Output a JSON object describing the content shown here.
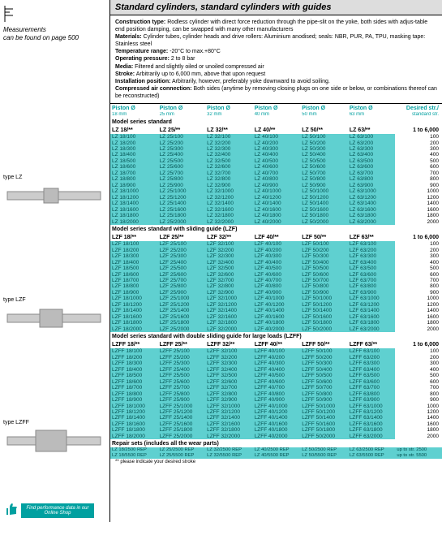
{
  "left": {
    "measurements": "Measurements",
    "measurements2": "can be found on page 500",
    "type_lz": "type LZ",
    "type_lzf": "type LZF",
    "type_lzff": "type LZFF",
    "shop": "Find performance data in our Online Shop"
  },
  "title": "Standard cylinders, standard cylinders with guides",
  "spec": {
    "construction_label": "Construction type:",
    "construction": "Rodless cylinder with direct force reduction through the pipe-slit on the yoke, both sides with adjus-table end position damping, can be swapped with many other manufacturers",
    "materials_label": "Materials:",
    "materials": "Cylinder tubes, cylinder heads and drive rollers: Aluminium anodised; seals: NBR, PUR, PA, TPU, masking tape: Stainless steel",
    "temp_label": "Temperature range:",
    "temp": "-20°C to max.+80°C",
    "pressure_label": "Operating pressure:",
    "pressure": "2 to 8 bar",
    "media_label": "Media:",
    "media": "Filtered and slightly oiled or unoiled compressed air",
    "stroke_label": "Stroke:",
    "stroke": "Arbitrarily up to 6,000 mm, above that upon request",
    "install_label": "Installation position:",
    "install": "Arbitrarily, however, preferably yoke downward to avoid soiling.",
    "air_label": "Compressed air connection:",
    "air": "Both sides (anytime by removing closing plugs on one side or below, or combinations thereof can be reconstructed)"
  },
  "col_headers": {
    "piston": "Piston Ø",
    "d18": "18 mm",
    "d25": "25 mm",
    "d32": "32 mm",
    "d40": "40 mm",
    "d50": "50 mm",
    "d63": "63 mm",
    "desired1": "Desired str./",
    "desired2": "standard str."
  },
  "sections": {
    "lz": {
      "title": "Model series standard",
      "heads": [
        "LZ 18/**",
        "LZ 25/**",
        "LZ 32/**",
        "LZ 40/**",
        "LZ 50/**",
        "LZ 63/**"
      ],
      "range": "1 to 6,000",
      "strokes": [
        "100",
        "200",
        "300",
        "400",
        "500",
        "600",
        "700",
        "800",
        "900",
        "1000",
        "1200",
        "1400",
        "1600",
        "1800",
        "2000"
      ],
      "cells": [
        [
          "LZ 18/100",
          "LZ 25/100",
          "LZ 32/100",
          "LZ 40/100",
          "LZ 50/100",
          "LZ 63/100"
        ],
        [
          "LZ 18/200",
          "LZ 25/200",
          "LZ 32/200",
          "LZ 40/200",
          "LZ 50/200",
          "LZ 63/200"
        ],
        [
          "LZ 18/300",
          "LZ 25/300",
          "LZ 32/300",
          "LZ 40/300",
          "LZ 50/300",
          "LZ 63/300"
        ],
        [
          "LZ 18/400",
          "LZ 25/400",
          "LZ 32/400",
          "LZ 40/400",
          "LZ 50/400",
          "LZ 63/400"
        ],
        [
          "LZ 18/500",
          "LZ 25/500",
          "LZ 32/500",
          "LZ 40/500",
          "LZ 50/500",
          "LZ 63/500"
        ],
        [
          "LZ 18/600",
          "LZ 25/600",
          "LZ 32/600",
          "LZ 40/600",
          "LZ 50/600",
          "LZ 63/600"
        ],
        [
          "LZ 18/700",
          "LZ 25/700",
          "LZ 32/700",
          "LZ 40/700",
          "LZ 50/700",
          "LZ 63/700"
        ],
        [
          "LZ 18/800",
          "LZ 25/800",
          "LZ 32/800",
          "LZ 40/800",
          "LZ 50/800",
          "LZ 63/800"
        ],
        [
          "LZ 18/900",
          "LZ 25/900",
          "LZ 32/900",
          "LZ 40/900",
          "LZ 50/900",
          "LZ 63/900"
        ],
        [
          "LZ 18/1000",
          "LZ 25/1000",
          "LZ 32/1000",
          "LZ 40/1000",
          "LZ 50/1000",
          "LZ 63/1000"
        ],
        [
          "LZ 18/1200",
          "LZ 25/1200",
          "LZ 32/1200",
          "LZ 40/1200",
          "LZ 50/1200",
          "LZ 63/1200"
        ],
        [
          "LZ 18/1400",
          "LZ 25/1400",
          "LZ 32/1400",
          "LZ 40/1400",
          "LZ 50/1400",
          "LZ 63/1400"
        ],
        [
          "LZ 18/1600",
          "LZ 25/1600",
          "LZ 32/1600",
          "LZ 40/1600",
          "LZ 50/1600",
          "LZ 63/1600"
        ],
        [
          "LZ 18/1800",
          "LZ 25/1800",
          "LZ 32/1800",
          "LZ 40/1800",
          "LZ 50/1800",
          "LZ 63/1800"
        ],
        [
          "LZ 18/2000",
          "LZ 25/2000",
          "LZ 32/2000",
          "LZ 40/2000",
          "LZ 50/2000",
          "LZ 63/2000"
        ]
      ]
    },
    "lzf": {
      "title": "Model series standard with sliding guide (LZF)",
      "heads": [
        "LZF 18/**",
        "LZF 25/**",
        "LZF 32/**",
        "LZF 40/**",
        "LZF 50/**",
        "LZF 63/**"
      ],
      "range": "1 to 6,000",
      "strokes": [
        "100",
        "200",
        "300",
        "400",
        "500",
        "600",
        "700",
        "800",
        "900",
        "1000",
        "1200",
        "1400",
        "1600",
        "1800",
        "2000"
      ],
      "cells": [
        [
          "LZF 18/100",
          "LZF 25/100",
          "LZF 32/100",
          "LZF 40/100",
          "LZF 50/100",
          "LZF 63/100"
        ],
        [
          "LZF 18/200",
          "LZF 25/200",
          "LZF 32/200",
          "LZF 40/200",
          "LZF 50/200",
          "LZF 63/200"
        ],
        [
          "LZF 18/300",
          "LZF 25/300",
          "LZF 32/300",
          "LZF 40/300",
          "LZF 50/300",
          "LZF 63/300"
        ],
        [
          "LZF 18/400",
          "LZF 25/400",
          "LZF 32/400",
          "LZF 40/400",
          "LZF 50/400",
          "LZF 63/400"
        ],
        [
          "LZF 18/500",
          "LZF 25/500",
          "LZF 32/500",
          "LZF 40/500",
          "LZF 50/500",
          "LZF 63/500"
        ],
        [
          "LZF 18/600",
          "LZF 25/600",
          "LZF 32/600",
          "LZF 40/600",
          "LZF 50/600",
          "LZF 63/600"
        ],
        [
          "LZF 18/700",
          "LZF 25/700",
          "LZF 32/700",
          "LZF 40/700",
          "LZF 50/700",
          "LZF 63/700"
        ],
        [
          "LZF 18/800",
          "LZF 25/800",
          "LZF 32/800",
          "LZF 40/800",
          "LZF 50/800",
          "LZF 63/800"
        ],
        [
          "LZF 18/900",
          "LZF 25/900",
          "LZF 32/900",
          "LZF 40/900",
          "LZF 50/900",
          "LZF 63/900"
        ],
        [
          "LZF 18/1000",
          "LZF 25/1000",
          "LZF 32/1000",
          "LZF 40/1000",
          "LZF 50/1000",
          "LZF 63/1000"
        ],
        [
          "LZF 18/1200",
          "LZF 25/1200",
          "LZF 32/1200",
          "LZF 40/1200",
          "LZF 50/1200",
          "LZF 63/1200"
        ],
        [
          "LZF 18/1400",
          "LZF 25/1400",
          "LZF 32/1400",
          "LZF 40/1400",
          "LZF 50/1400",
          "LZF 63/1400"
        ],
        [
          "LZF 18/1600",
          "LZF 25/1600",
          "LZF 32/1600",
          "LZF 40/1600",
          "LZF 50/1600",
          "LZF 63/1600"
        ],
        [
          "LZF 18/1800",
          "LZF 25/1800",
          "LZF 32/1800",
          "LZF 40/1800",
          "LZF 50/1800",
          "LZF 63/1800"
        ],
        [
          "LZF 18/2000",
          "LZF 25/2000",
          "LZF 32/2000",
          "LZF 40/2000",
          "LZF 50/2000",
          "LZF 63/2000"
        ]
      ]
    },
    "lzff": {
      "title": "Model series standard with double sliding guide for large loads (LZFF)",
      "heads": [
        "LZFF 18/**",
        "LZFF 25/**",
        "LZFF 32/**",
        "LZFF 40/**",
        "LZFF 50/**",
        "LZFF 63/**"
      ],
      "range": "1 to 6,000",
      "strokes": [
        "100",
        "200",
        "300",
        "400",
        "500",
        "600",
        "700",
        "800",
        "900",
        "1000",
        "1200",
        "1400",
        "1600",
        "1800",
        "2000"
      ],
      "cells": [
        [
          "LZFF 18/100",
          "LZFF 25/100",
          "LZFF 32/100",
          "LZFF 40/100",
          "LZFF 50/100",
          "LZFF 63/100"
        ],
        [
          "LZFF 18/200",
          "LZFF 25/200",
          "LZFF 32/200",
          "LZFF 40/200",
          "LZFF 50/200",
          "LZFF 63/200"
        ],
        [
          "LZFF 18/300",
          "LZFF 25/300",
          "LZFF 32/300",
          "LZFF 40/300",
          "LZFF 50/300",
          "LZFF 63/300"
        ],
        [
          "LZFF 18/400",
          "LZFF 25/400",
          "LZFF 32/400",
          "LZFF 40/400",
          "LZFF 50/400",
          "LZFF 63/400"
        ],
        [
          "LZFF 18/500",
          "LZFF 25/500",
          "LZFF 32/500",
          "LZFF 40/500",
          "LZFF 50/500",
          "LZFF 63/500"
        ],
        [
          "LZFF 18/600",
          "LZFF 25/600",
          "LZFF 32/600",
          "LZFF 40/600",
          "LZFF 50/600",
          "LZFF 63/600"
        ],
        [
          "LZFF 18/700",
          "LZFF 25/700",
          "LZFF 32/700",
          "LZFF 40/700",
          "LZFF 50/700",
          "LZFF 63/700"
        ],
        [
          "LZFF 18/800",
          "LZFF 25/800",
          "LZFF 32/800",
          "LZFF 40/800",
          "LZFF 50/800",
          "LZFF 63/800"
        ],
        [
          "LZFF 18/900",
          "LZFF 25/900",
          "LZFF 32/900",
          "LZFF 40/900",
          "LZFF 50/900",
          "LZFF 63/900"
        ],
        [
          "LZFF 18/1000",
          "LZFF 25/1000",
          "LZFF 32/1000",
          "LZFF 40/1000",
          "LZFF 50/1000",
          "LZFF 63/1000"
        ],
        [
          "LZFF 18/1200",
          "LZFF 25/1200",
          "LZFF 32/1200",
          "LZFF 40/1200",
          "LZFF 50/1200",
          "LZFF 63/1200"
        ],
        [
          "LZFF 18/1400",
          "LZFF 25/1400",
          "LZFF 32/1400",
          "LZFF 40/1400",
          "LZFF 50/1400",
          "LZFF 63/1400"
        ],
        [
          "LZFF 18/1600",
          "LZFF 25/1600",
          "LZFF 32/1600",
          "LZFF 40/1600",
          "LZFF 50/1600",
          "LZFF 63/1600"
        ],
        [
          "LZFF 18/1800",
          "LZFF 25/1800",
          "LZFF 32/1800",
          "LZFF 40/1800",
          "LZFF 50/1800",
          "LZFF 63/1800"
        ],
        [
          "LZFF 18/2000",
          "LZFF 25/2000",
          "LZFF 32/2000",
          "LZFF 40/2000",
          "LZFF 50/2000",
          "LZFF 63/2000"
        ]
      ]
    }
  },
  "repair": {
    "title": "Repair sets (includes all the wear parts)",
    "cells": [
      "LZ 18/2500 REP",
      "LZ 25/2500 REP",
      "LZ 32/2500 REP",
      "LZ 40/2500 REP",
      "LZ 50/2500 REP",
      "LZ 63/2500 REP",
      "up to str. 2500"
    ],
    "cells2": [
      "LZ 18/5500 REP",
      "LZ 25/5500 REP",
      "LZ 32/5500 REP",
      "LZ 40/5500 REP",
      "LZ 50/5500 REP",
      "LZ 63/5500 REP",
      "up to str. 5500"
    ]
  },
  "footnote": "** please indicate your desired stroke",
  "style": {
    "teal": "#5fd0d0",
    "teal_dark": "#00a0a0",
    "teal_text": "#005050"
  }
}
